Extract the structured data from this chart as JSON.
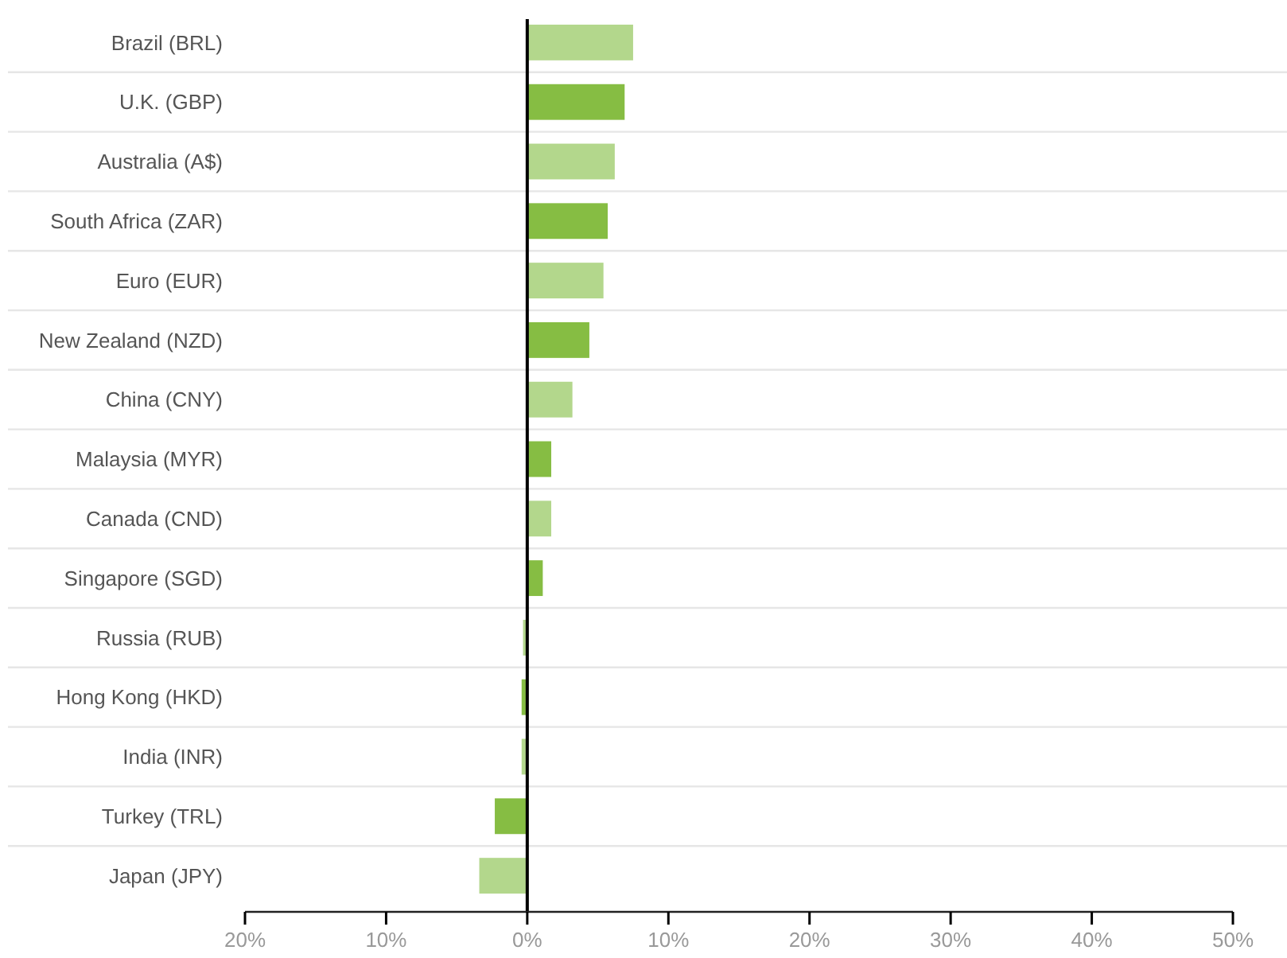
{
  "chart_data": {
    "type": "bar",
    "orientation": "horizontal",
    "categories": [
      "Brazil (BRL)",
      "U.K. (GBP)",
      "Australia (A$)",
      "South Africa (ZAR)",
      "Euro (EUR)",
      "New Zealand (NZD)",
      "China (CNY)",
      "Malaysia (MYR)",
      "Canada (CND)",
      "Singapore (SGD)",
      "Russia (RUB)",
      "Hong Kong (HKD)",
      "India (INR)",
      "Turkey (TRL)",
      "Japan (JPY)"
    ],
    "values": [
      7.5,
      6.9,
      6.2,
      5.7,
      5.4,
      4.4,
      3.2,
      1.7,
      1.7,
      1.1,
      -0.3,
      -0.4,
      -0.4,
      -2.3,
      -3.4
    ],
    "colors": [
      "#b3d78c",
      "#86bd43",
      "#b3d78c",
      "#86bd43",
      "#b3d78c",
      "#86bd43",
      "#b3d78c",
      "#86bd43",
      "#b3d78c",
      "#86bd43",
      "#b3d78c",
      "#86bd43",
      "#b3d78c",
      "#86bd43",
      "#b3d78c"
    ],
    "xlim": [
      -20,
      50
    ],
    "xticks": [
      {
        "value": -20,
        "label": "20%"
      },
      {
        "value": -10,
        "label": "10%"
      },
      {
        "value": 0,
        "label": "0%"
      },
      {
        "value": 10,
        "label": "10%"
      },
      {
        "value": 20,
        "label": "20%"
      },
      {
        "value": 30,
        "label": "30%"
      },
      {
        "value": 40,
        "label": "40%"
      },
      {
        "value": 50,
        "label": "50%"
      }
    ],
    "grid": "y"
  }
}
